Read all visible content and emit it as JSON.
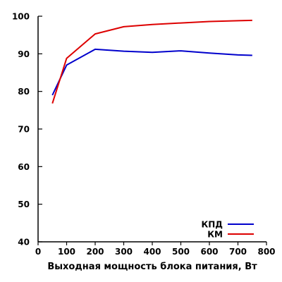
{
  "chart_data": {
    "type": "line",
    "title": "",
    "xlabel": "Выходная мощность блока питания, Вт",
    "ylabel": "",
    "xlim": [
      0,
      800
    ],
    "ylim": [
      40,
      100
    ],
    "xticks": [
      0,
      100,
      200,
      300,
      400,
      500,
      600,
      700,
      800
    ],
    "yticks": [
      40,
      50,
      60,
      70,
      80,
      90,
      100
    ],
    "grid": false,
    "legend_position": "bottom-right",
    "series": [
      {
        "name": "КПД",
        "color": "#0000cc",
        "x": [
          50,
          100,
          200,
          300,
          400,
          500,
          600,
          700,
          750
        ],
        "y": [
          79,
          87,
          91.2,
          90.7,
          90.4,
          90.8,
          90.2,
          89.7,
          89.6
        ]
      },
      {
        "name": "КМ",
        "color": "#dd0000",
        "x": [
          50,
          100,
          200,
          300,
          400,
          500,
          600,
          700,
          750
        ],
        "y": [
          76.8,
          88.8,
          95.3,
          97.2,
          97.8,
          98.2,
          98.6,
          98.8,
          98.9
        ]
      }
    ]
  }
}
